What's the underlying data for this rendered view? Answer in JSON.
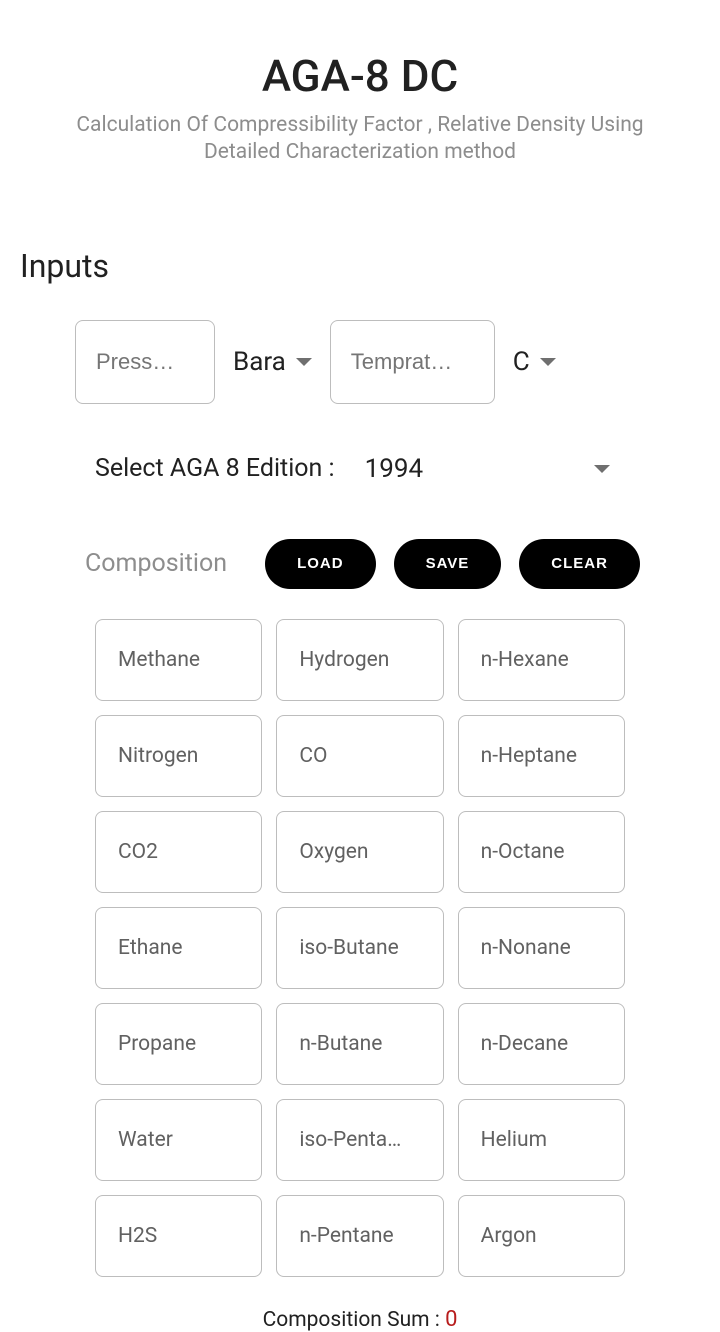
{
  "header": {
    "title": "AGA-8 DC",
    "subtitle": "Calculation Of Compressibility Factor , Relative Density Using Detailed Characterization method"
  },
  "inputs": {
    "section_heading": "Inputs",
    "pressure_placeholder": "Press…",
    "pressure_unit": "Bara",
    "temperature_placeholder": "Temprat…",
    "temperature_unit": "C"
  },
  "edition": {
    "label": "Select AGA 8 Edition :",
    "selected": "1994"
  },
  "composition": {
    "label": "Composition",
    "buttons": {
      "load": "LOAD",
      "save": "SAVE",
      "clear": "CLEAR"
    },
    "components": [
      {
        "name": "Methane"
      },
      {
        "name": "Hydrogen"
      },
      {
        "name": "n-Hexane"
      },
      {
        "name": "Nitrogen"
      },
      {
        "name": "CO"
      },
      {
        "name": "n-Heptane"
      },
      {
        "name": "CO2"
      },
      {
        "name": "Oxygen"
      },
      {
        "name": "n-Octane"
      },
      {
        "name": "Ethane"
      },
      {
        "name": "iso-Butane"
      },
      {
        "name": "n-Nonane"
      },
      {
        "name": "Propane"
      },
      {
        "name": "n-Butane"
      },
      {
        "name": "n-Decane"
      },
      {
        "name": "Water"
      },
      {
        "name": "iso-Penta…"
      },
      {
        "name": "Helium"
      },
      {
        "name": "H2S"
      },
      {
        "name": "n-Pentane"
      },
      {
        "name": "Argon"
      }
    ],
    "sum_label": "Composition Sum : ",
    "sum_value": "0"
  },
  "colors": {
    "background": "#ffffff",
    "text_primary": "#212121",
    "text_secondary": "#8d8d8d",
    "text_muted": "#616161",
    "border": "#bdbdbd",
    "button_bg": "#000000",
    "button_text": "#ffffff",
    "sum_value_color": "#b71c1c"
  }
}
